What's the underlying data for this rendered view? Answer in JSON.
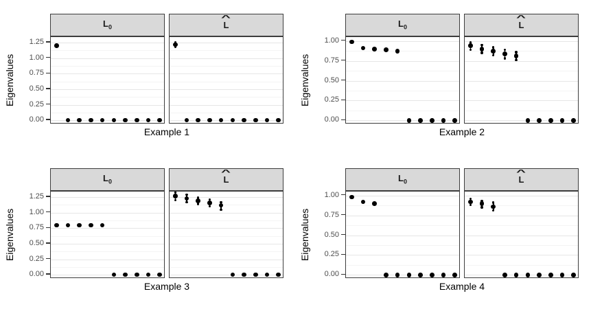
{
  "figure": {
    "kind": "faceted-scatter-grid",
    "background": "#ffffff"
  },
  "palette": {
    "point": "#000000",
    "strip_bg": "#d9d9d9",
    "panel_border": "#3c3c3c",
    "grid_major": "#e6e6e6",
    "grid_minor": "#f4f4f4",
    "tick_text": "#4d4d4d",
    "title_text": "#000000"
  },
  "chart_data": [
    {
      "type": "scatter",
      "xlabel": "Example 1",
      "ylabel": "Eigenvalues",
      "ylim": [
        -0.065,
        1.34
      ],
      "yticks": [
        0,
        0.25,
        0.5,
        0.75,
        1.0,
        1.25
      ],
      "ytick_labels": [
        "0.00",
        "0.25",
        "0.50",
        "0.75",
        "1.00",
        "1.25"
      ],
      "minor_offset": 0.125,
      "legend": "none",
      "n_positions": 10,
      "facets": [
        {
          "label": {
            "text": "L0",
            "base": "L",
            "sub": "0"
          },
          "points": [
            {
              "x": 1,
              "y": 1.2
            },
            {
              "x": 2,
              "y": 0
            },
            {
              "x": 3,
              "y": 0
            },
            {
              "x": 4,
              "y": 0
            },
            {
              "x": 5,
              "y": 0
            },
            {
              "x": 6,
              "y": 0
            },
            {
              "x": 7,
              "y": 0
            },
            {
              "x": 8,
              "y": 0
            },
            {
              "x": 9,
              "y": 0
            },
            {
              "x": 10,
              "y": 0
            }
          ]
        },
        {
          "label": {
            "text": "L-hat",
            "base": "L",
            "hat": true
          },
          "points": [
            {
              "x": 1,
              "y": 1.22,
              "lo": 1.18,
              "hi": 1.26
            },
            {
              "x": 2,
              "y": 0
            },
            {
              "x": 3,
              "y": 0
            },
            {
              "x": 4,
              "y": 0
            },
            {
              "x": 5,
              "y": 0
            },
            {
              "x": 6,
              "y": 0
            },
            {
              "x": 7,
              "y": 0
            },
            {
              "x": 8,
              "y": 0
            },
            {
              "x": 9,
              "y": 0
            },
            {
              "x": 10,
              "y": 0
            }
          ]
        }
      ]
    },
    {
      "type": "scatter",
      "xlabel": "Example 2",
      "ylabel": "Eigenvalues",
      "ylim": [
        -0.05,
        1.05
      ],
      "yticks": [
        0,
        0.25,
        0.5,
        0.75,
        1.0
      ],
      "ytick_labels": [
        "0.00",
        "0.25",
        "0.50",
        "0.75",
        "1.00"
      ],
      "minor_offset": 0.125,
      "legend": "none",
      "n_positions": 10,
      "facets": [
        {
          "label": {
            "text": "L0",
            "base": "L",
            "sub": "0"
          },
          "points": [
            {
              "x": 1,
              "y": 0.99
            },
            {
              "x": 2,
              "y": 0.91
            },
            {
              "x": 3,
              "y": 0.9
            },
            {
              "x": 4,
              "y": 0.89
            },
            {
              "x": 5,
              "y": 0.87
            },
            {
              "x": 6,
              "y": 0
            },
            {
              "x": 7,
              "y": 0
            },
            {
              "x": 8,
              "y": 0
            },
            {
              "x": 9,
              "y": 0
            },
            {
              "x": 10,
              "y": 0
            }
          ]
        },
        {
          "label": {
            "text": "L-hat",
            "base": "L",
            "hat": true
          },
          "points": [
            {
              "x": 1,
              "y": 0.94,
              "lo": 0.89,
              "hi": 0.98
            },
            {
              "x": 2,
              "y": 0.9,
              "lo": 0.85,
              "hi": 0.95
            },
            {
              "x": 3,
              "y": 0.87,
              "lo": 0.82,
              "hi": 0.92
            },
            {
              "x": 4,
              "y": 0.84,
              "lo": 0.78,
              "hi": 0.89
            },
            {
              "x": 5,
              "y": 0.81,
              "lo": 0.76,
              "hi": 0.86
            },
            {
              "x": 6,
              "y": 0
            },
            {
              "x": 7,
              "y": 0
            },
            {
              "x": 8,
              "y": 0
            },
            {
              "x": 9,
              "y": 0
            },
            {
              "x": 10,
              "y": 0
            }
          ]
        }
      ]
    },
    {
      "type": "scatter",
      "xlabel": "Example 3",
      "ylabel": "Eigenvalues",
      "ylim": [
        -0.065,
        1.34
      ],
      "yticks": [
        0,
        0.25,
        0.5,
        0.75,
        1.0,
        1.25
      ],
      "ytick_labels": [
        "0.00",
        "0.25",
        "0.50",
        "0.75",
        "1.00",
        "1.25"
      ],
      "minor_offset": 0.125,
      "legend": "none",
      "n_positions": 10,
      "facets": [
        {
          "label": {
            "text": "L0",
            "base": "L",
            "sub": "0"
          },
          "points": [
            {
              "x": 1,
              "y": 0.8
            },
            {
              "x": 2,
              "y": 0.8
            },
            {
              "x": 3,
              "y": 0.8
            },
            {
              "x": 4,
              "y": 0.8
            },
            {
              "x": 5,
              "y": 0.8
            },
            {
              "x": 6,
              "y": 0
            },
            {
              "x": 7,
              "y": 0
            },
            {
              "x": 8,
              "y": 0
            },
            {
              "x": 9,
              "y": 0
            },
            {
              "x": 10,
              "y": 0
            }
          ]
        },
        {
          "label": {
            "text": "L-hat",
            "base": "L",
            "hat": true
          },
          "points": [
            {
              "x": 1,
              "y": 1.27,
              "lo": 1.2,
              "hi": 1.33
            },
            {
              "x": 2,
              "y": 1.23,
              "lo": 1.17,
              "hi": 1.29
            },
            {
              "x": 3,
              "y": 1.19,
              "lo": 1.14,
              "hi": 1.24
            },
            {
              "x": 4,
              "y": 1.16,
              "lo": 1.1,
              "hi": 1.21
            },
            {
              "x": 5,
              "y": 1.12,
              "lo": 1.05,
              "hi": 1.17
            },
            {
              "x": 6,
              "y": 0
            },
            {
              "x": 7,
              "y": 0
            },
            {
              "x": 8,
              "y": 0
            },
            {
              "x": 9,
              "y": 0
            },
            {
              "x": 10,
              "y": 0
            }
          ]
        }
      ]
    },
    {
      "type": "scatter",
      "xlabel": "Example 4",
      "ylabel": "Eigenvalues",
      "ylim": [
        -0.05,
        1.05
      ],
      "yticks": [
        0,
        0.25,
        0.5,
        0.75,
        1.0
      ],
      "ytick_labels": [
        "0.00",
        "0.25",
        "0.50",
        "0.75",
        "1.00"
      ],
      "minor_offset": 0.125,
      "legend": "none",
      "n_positions": 10,
      "facets": [
        {
          "label": {
            "text": "L0",
            "base": "L",
            "sub": "0"
          },
          "points": [
            {
              "x": 1,
              "y": 0.98
            },
            {
              "x": 2,
              "y": 0.92
            },
            {
              "x": 3,
              "y": 0.9
            },
            {
              "x": 4,
              "y": 0
            },
            {
              "x": 5,
              "y": 0
            },
            {
              "x": 6,
              "y": 0
            },
            {
              "x": 7,
              "y": 0
            },
            {
              "x": 8,
              "y": 0
            },
            {
              "x": 9,
              "y": 0
            },
            {
              "x": 10,
              "y": 0
            }
          ]
        },
        {
          "label": {
            "text": "L-hat",
            "base": "L",
            "hat": true
          },
          "points": [
            {
              "x": 1,
              "y": 0.92,
              "lo": 0.88,
              "hi": 0.96
            },
            {
              "x": 2,
              "y": 0.9,
              "lo": 0.85,
              "hi": 0.93
            },
            {
              "x": 3,
              "y": 0.86,
              "lo": 0.81,
              "hi": 0.91
            },
            {
              "x": 4,
              "y": 0
            },
            {
              "x": 5,
              "y": 0
            },
            {
              "x": 6,
              "y": 0
            },
            {
              "x": 7,
              "y": 0
            },
            {
              "x": 8,
              "y": 0
            },
            {
              "x": 9,
              "y": 0
            },
            {
              "x": 10,
              "y": 0
            }
          ]
        }
      ]
    }
  ]
}
